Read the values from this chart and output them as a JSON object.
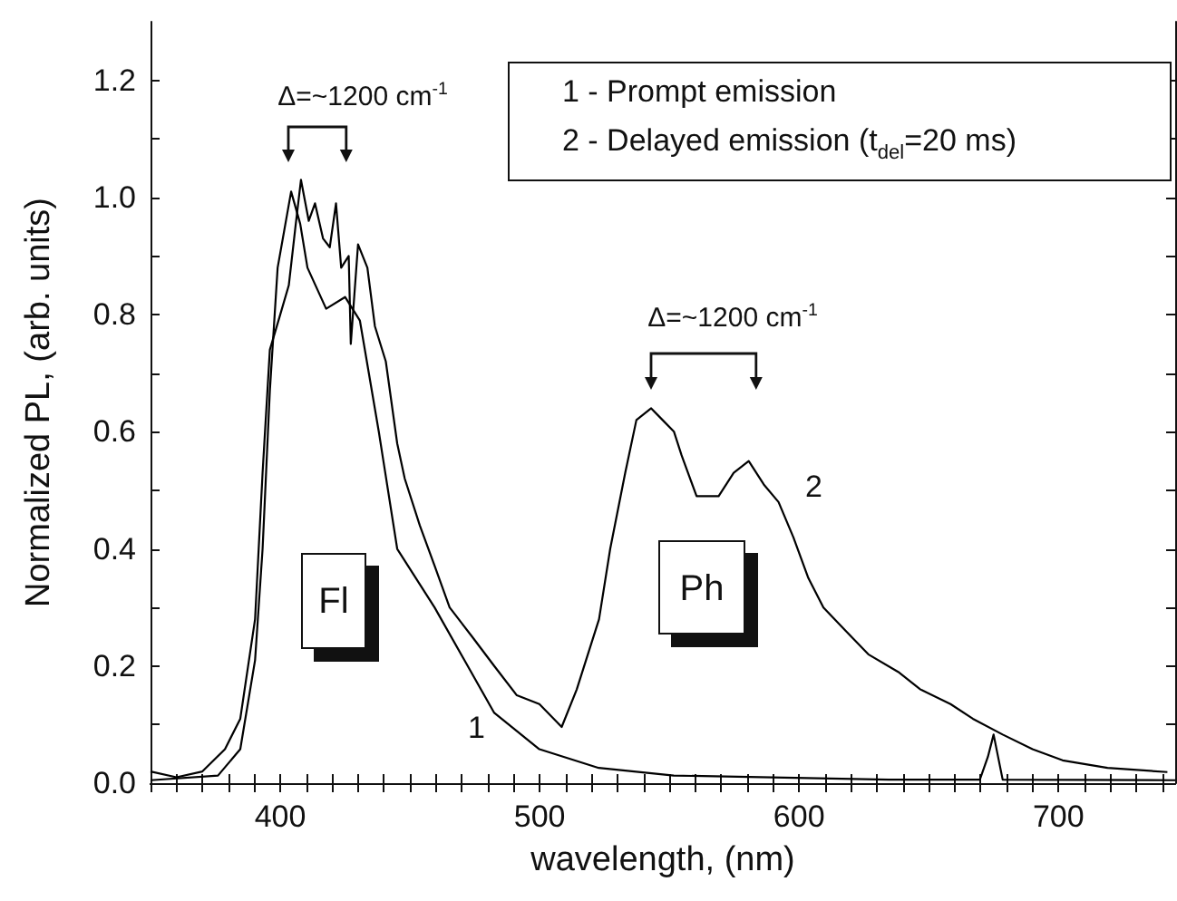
{
  "chart_data": {
    "type": "line",
    "xlabel": "wavelength, (nm)",
    "ylabel": "Normalized PL, (arb. units)",
    "xlim": [
      350,
      745
    ],
    "ylim": [
      0,
      1.3
    ],
    "xticks": [
      {
        "value": 350,
        "label": null
      },
      {
        "value": 360,
        "label": null
      },
      {
        "value": 370,
        "label": null
      },
      {
        "value": 380,
        "label": null
      },
      {
        "value": 390,
        "label": null
      },
      400,
      {
        "value": 410,
        "label": null
      },
      {
        "value": 420,
        "label": null
      },
      {
        "value": 430,
        "label": null
      },
      {
        "value": 440,
        "label": null
      },
      {
        "value": 450,
        "label": null
      },
      {
        "value": 460,
        "label": null
      },
      {
        "value": 470,
        "label": null
      },
      {
        "value": 480,
        "label": null
      },
      {
        "value": 490,
        "label": null
      },
      500,
      {
        "value": 510,
        "label": null
      },
      {
        "value": 520,
        "label": null
      },
      {
        "value": 530,
        "label": null
      },
      {
        "value": 540,
        "label": null
      },
      {
        "value": 550,
        "label": null
      },
      {
        "value": 560,
        "label": null
      },
      {
        "value": 570,
        "label": null
      },
      {
        "value": 580,
        "label": null
      },
      {
        "value": 590,
        "label": null
      },
      600,
      {
        "value": 610,
        "label": null
      },
      {
        "value": 620,
        "label": null
      },
      {
        "value": 630,
        "label": null
      },
      {
        "value": 640,
        "label": null
      },
      {
        "value": 650,
        "label": null
      },
      {
        "value": 660,
        "label": null
      },
      {
        "value": 670,
        "label": null
      },
      {
        "value": 680,
        "label": null
      },
      {
        "value": 690,
        "label": null
      },
      700,
      {
        "value": 710,
        "label": null
      },
      {
        "value": 720,
        "label": null
      },
      {
        "value": 730,
        "label": null
      },
      {
        "value": 740,
        "label": null
      }
    ],
    "yticks": [
      {
        "value": 0,
        "label": "0.0"
      },
      {
        "value": 0.1,
        "label": null
      },
      {
        "value": 0.2,
        "label": "0.2"
      },
      {
        "value": 0.3,
        "label": null
      },
      {
        "value": 0.4,
        "label": "0.4"
      },
      {
        "value": 0.5,
        "label": null
      },
      {
        "value": 0.6,
        "label": "0.6"
      },
      {
        "value": 0.7,
        "label": null
      },
      {
        "value": 0.8,
        "label": "0.8"
      },
      {
        "value": 0.9,
        "label": null
      },
      {
        "value": 1.0,
        "label": "1.0"
      },
      {
        "value": 1.1,
        "label": null
      },
      {
        "value": 1.2,
        "label": "1.2"
      }
    ],
    "grid": false,
    "series": [
      {
        "name": "1",
        "color": "#000000",
        "x": [
          350,
          376,
          384.6,
          390.3,
          393.2,
          396,
          399,
          404.2,
          407.7,
          410.5,
          417.7,
          425,
          430.7,
          438,
          445.1,
          459.5,
          471,
          482.5,
          499.9,
          522.8,
          551.7,
          634.6,
          669.7,
          672.8,
          675,
          678.5,
          745
        ],
        "values": [
          0.005,
          0.013,
          0.058,
          0.21,
          0.4,
          0.67,
          0.88,
          1.01,
          0.955,
          0.88,
          0.81,
          0.83,
          0.79,
          0.6,
          0.4,
          0.3,
          0.21,
          0.12,
          0.058,
          0.026,
          0.013,
          0.006,
          0.006,
          0.045,
          0.083,
          0.006,
          0.005
        ]
      },
      {
        "name": "2",
        "color": "#000000",
        "x": [
          350,
          360,
          370,
          378.7,
          384.6,
          390.3,
          393.2,
          396,
          400,
          403.3,
          406,
          408,
          411,
          413.4,
          416.5,
          419.1,
          421.5,
          423.5,
          426.4,
          427.2,
          430,
          433.6,
          436.5,
          440.7,
          445.1,
          448,
          453.8,
          459.6,
          465.3,
          474,
          482.5,
          491.2,
          499.9,
          508.5,
          514.3,
          522.9,
          527.2,
          533,
          537.3,
          543,
          547.4,
          551.8,
          554.7,
          560.5,
          569,
          574.8,
          580.6,
          586.4,
          592.1,
          597.8,
          603.6,
          609.4,
          618,
          626.7,
          638.2,
          646.8,
          658.4,
          667,
          678.5,
          690,
          701.6,
          718.9,
          742
        ],
        "values": [
          0.02,
          0.01,
          0.02,
          0.058,
          0.11,
          0.28,
          0.53,
          0.74,
          0.8,
          0.85,
          0.955,
          1.03,
          0.96,
          0.99,
          0.93,
          0.915,
          0.99,
          0.88,
          0.9,
          0.75,
          0.92,
          0.88,
          0.78,
          0.72,
          0.58,
          0.52,
          0.44,
          0.37,
          0.3,
          0.25,
          0.2,
          0.15,
          0.135,
          0.096,
          0.16,
          0.28,
          0.4,
          0.53,
          0.62,
          0.64,
          0.62,
          0.6,
          0.56,
          0.49,
          0.49,
          0.53,
          0.55,
          0.51,
          0.48,
          0.42,
          0.35,
          0.3,
          0.26,
          0.22,
          0.19,
          0.16,
          0.135,
          0.11,
          0.083,
          0.058,
          0.039,
          0.026,
          0.019
        ]
      }
    ],
    "annotations": [
      "1 - Prompt emission",
      "2 - Delayed emission (t$_{del}$=20 ms)",
      "Δ=~1200 cm$^{-1}$",
      "Δ=~1200 cm$^{-1}$",
      "Fl",
      "Ph"
    ]
  }
}
